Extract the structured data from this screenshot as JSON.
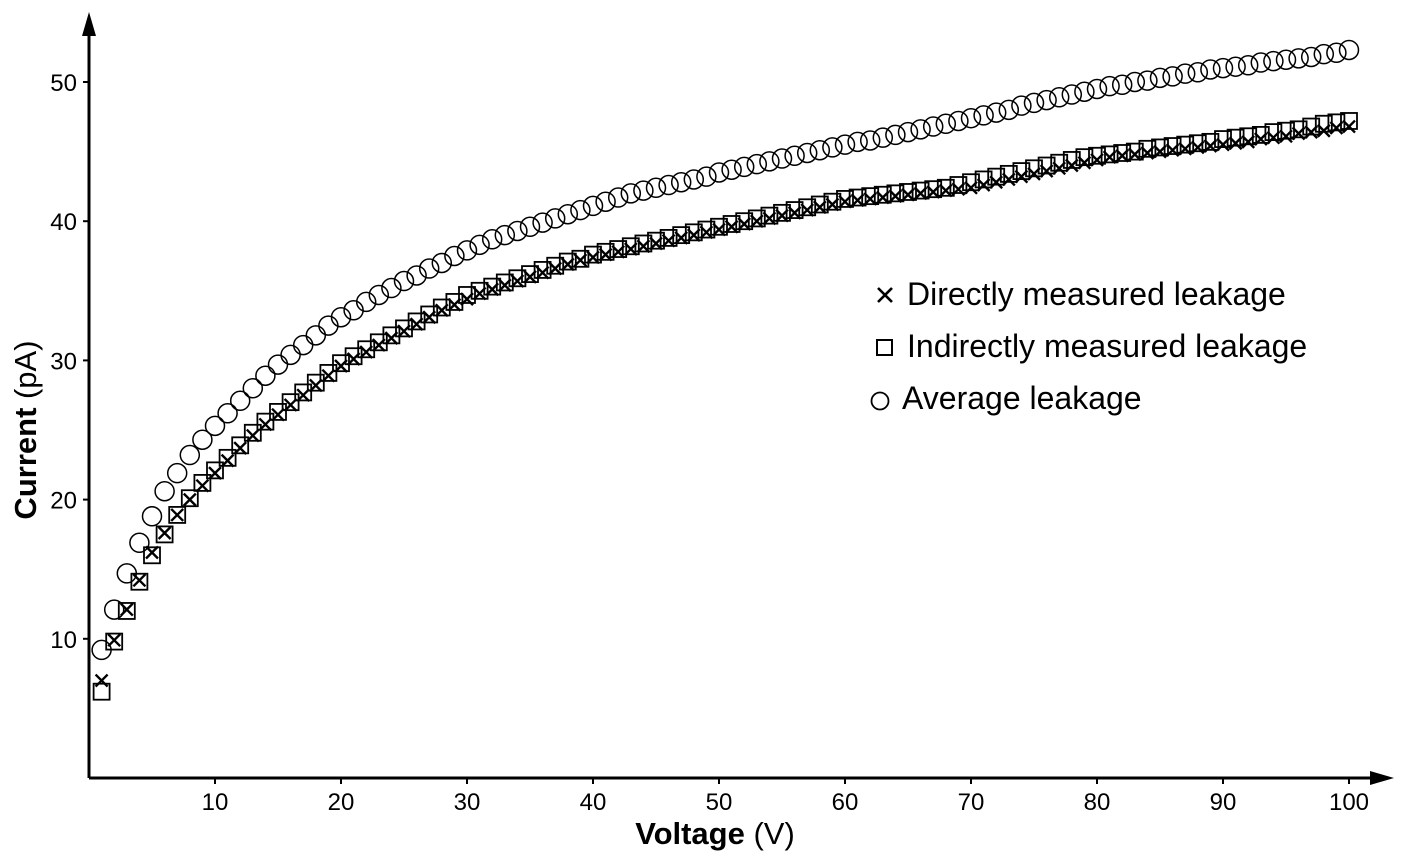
{
  "chart_data": {
    "type": "scatter",
    "xlabel": {
      "bold": "Voltage",
      "unit": " (V)"
    },
    "ylabel": {
      "bold": "Current",
      "unit": " (pA)"
    },
    "xlim": [
      0,
      101
    ],
    "ylim": [
      0,
      54.5
    ],
    "xticks": [
      10,
      20,
      30,
      40,
      50,
      60,
      70,
      80,
      90,
      100
    ],
    "yticks": [
      10,
      20,
      30,
      40,
      50
    ],
    "grid": false,
    "legend_position": "center-right",
    "x": [
      1,
      2,
      3,
      4,
      5,
      6,
      7,
      8,
      9,
      10,
      11,
      12,
      13,
      14,
      15,
      16,
      17,
      18,
      19,
      20,
      21,
      22,
      23,
      24,
      25,
      26,
      27,
      28,
      29,
      30,
      31,
      32,
      33,
      34,
      35,
      36,
      37,
      38,
      39,
      40,
      41,
      42,
      43,
      44,
      45,
      46,
      47,
      48,
      49,
      50,
      51,
      52,
      53,
      54,
      55,
      56,
      57,
      58,
      59,
      60,
      61,
      62,
      63,
      64,
      65,
      66,
      67,
      68,
      69,
      70,
      71,
      72,
      73,
      74,
      75,
      76,
      77,
      78,
      79,
      80,
      81,
      82,
      83,
      84,
      85,
      86,
      87,
      88,
      89,
      90,
      91,
      92,
      93,
      94,
      95,
      96,
      97,
      98,
      99,
      100
    ],
    "series": [
      {
        "name": "Directly measured leakage",
        "marker": "x",
        "values": [
          7.0,
          9.9,
          12.1,
          14.2,
          16.2,
          17.6,
          18.9,
          20.0,
          21.0,
          21.9,
          22.8,
          23.7,
          24.6,
          25.4,
          26.1,
          26.8,
          27.5,
          28.2,
          28.9,
          29.6,
          30.1,
          30.6,
          31.1,
          31.6,
          32.1,
          32.6,
          33.1,
          33.6,
          34.0,
          34.4,
          34.8,
          35.1,
          35.4,
          35.7,
          36.0,
          36.3,
          36.6,
          36.9,
          37.2,
          37.4,
          37.6,
          37.8,
          38.0,
          38.2,
          38.4,
          38.6,
          38.8,
          39.0,
          39.2,
          39.4,
          39.6,
          39.8,
          40.0,
          40.2,
          40.4,
          40.6,
          40.8,
          41.0,
          41.2,
          41.4,
          41.5,
          41.6,
          41.7,
          41.8,
          41.9,
          42.0,
          42.1,
          42.2,
          42.3,
          42.4,
          42.6,
          42.8,
          43.0,
          43.2,
          43.4,
          43.6,
          43.8,
          44.0,
          44.2,
          44.4,
          44.6,
          44.7,
          44.8,
          44.9,
          45.0,
          45.1,
          45.2,
          45.3,
          45.4,
          45.5,
          45.6,
          45.7,
          45.9,
          46.0,
          46.1,
          46.3,
          46.4,
          46.5,
          46.7,
          46.8
        ]
      },
      {
        "name": "Indirectly measured leakage",
        "marker": "square",
        "values": [
          6.2,
          9.8,
          12.0,
          14.1,
          16.0,
          17.5,
          18.9,
          20.1,
          21.2,
          22.1,
          23.0,
          23.9,
          24.8,
          25.6,
          26.3,
          27.0,
          27.7,
          28.4,
          29.1,
          29.8,
          30.3,
          30.8,
          31.3,
          31.8,
          32.3,
          32.8,
          33.3,
          33.8,
          34.2,
          34.7,
          35.0,
          35.3,
          35.6,
          35.9,
          36.2,
          36.5,
          36.8,
          37.1,
          37.3,
          37.6,
          37.8,
          38.0,
          38.2,
          38.4,
          38.6,
          38.8,
          39.0,
          39.2,
          39.4,
          39.6,
          39.8,
          40.0,
          40.2,
          40.4,
          40.6,
          40.8,
          41.0,
          41.2,
          41.4,
          41.6,
          41.7,
          41.8,
          41.9,
          42.0,
          42.1,
          42.2,
          42.3,
          42.4,
          42.6,
          42.8,
          43.0,
          43.2,
          43.4,
          43.6,
          43.8,
          44.0,
          44.2,
          44.4,
          44.6,
          44.7,
          44.8,
          44.9,
          45.0,
          45.2,
          45.3,
          45.4,
          45.5,
          45.6,
          45.7,
          45.9,
          46.0,
          46.1,
          46.2,
          46.4,
          46.5,
          46.6,
          46.8,
          47.0,
          47.1,
          47.2
        ]
      },
      {
        "name": "Average leakage",
        "marker": "circle",
        "values": [
          9.2,
          12.1,
          14.7,
          16.9,
          18.8,
          20.6,
          21.9,
          23.2,
          24.3,
          25.3,
          26.2,
          27.1,
          28.0,
          28.9,
          29.7,
          30.4,
          31.1,
          31.8,
          32.5,
          33.1,
          33.6,
          34.2,
          34.7,
          35.2,
          35.7,
          36.1,
          36.6,
          37.0,
          37.5,
          37.9,
          38.3,
          38.7,
          39.0,
          39.3,
          39.6,
          39.9,
          40.2,
          40.5,
          40.8,
          41.1,
          41.4,
          41.7,
          42.0,
          42.2,
          42.4,
          42.6,
          42.8,
          43.0,
          43.2,
          43.5,
          43.7,
          43.9,
          44.1,
          44.3,
          44.5,
          44.7,
          44.9,
          45.1,
          45.3,
          45.5,
          45.7,
          45.8,
          46.0,
          46.2,
          46.4,
          46.6,
          46.8,
          47.0,
          47.2,
          47.4,
          47.6,
          47.8,
          48.0,
          48.3,
          48.5,
          48.7,
          48.9,
          49.1,
          49.3,
          49.5,
          49.7,
          49.8,
          50.0,
          50.1,
          50.3,
          50.4,
          50.6,
          50.7,
          50.9,
          51.0,
          51.1,
          51.2,
          51.4,
          51.5,
          51.6,
          51.7,
          51.8,
          52.0,
          52.1,
          52.3
        ]
      }
    ]
  }
}
